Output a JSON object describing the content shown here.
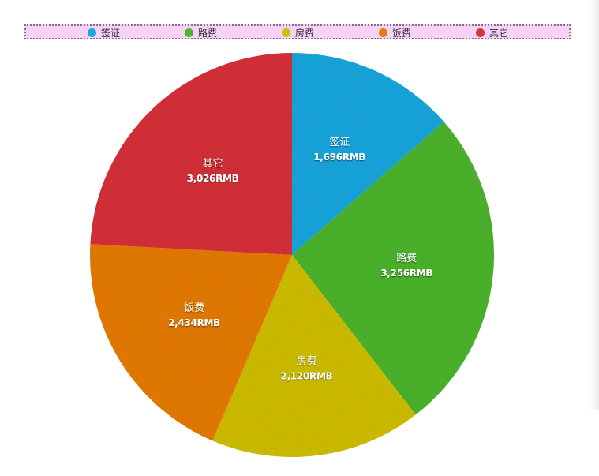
{
  "chart_data": {
    "type": "pie",
    "categories": [
      "签证",
      "路费",
      "房费",
      "饭费",
      "其它"
    ],
    "values": [
      1696,
      3256,
      2120,
      2434,
      3026
    ],
    "value_labels": [
      "1,696RMB",
      "3,256RMB",
      "2,120RMB",
      "2,434RMB",
      "3,026RMB"
    ],
    "colors": [
      "#1ba8e0",
      "#4db62f",
      "#d2c004",
      "#e77c08",
      "#d8333a"
    ],
    "legend_position": "top",
    "title": ""
  }
}
